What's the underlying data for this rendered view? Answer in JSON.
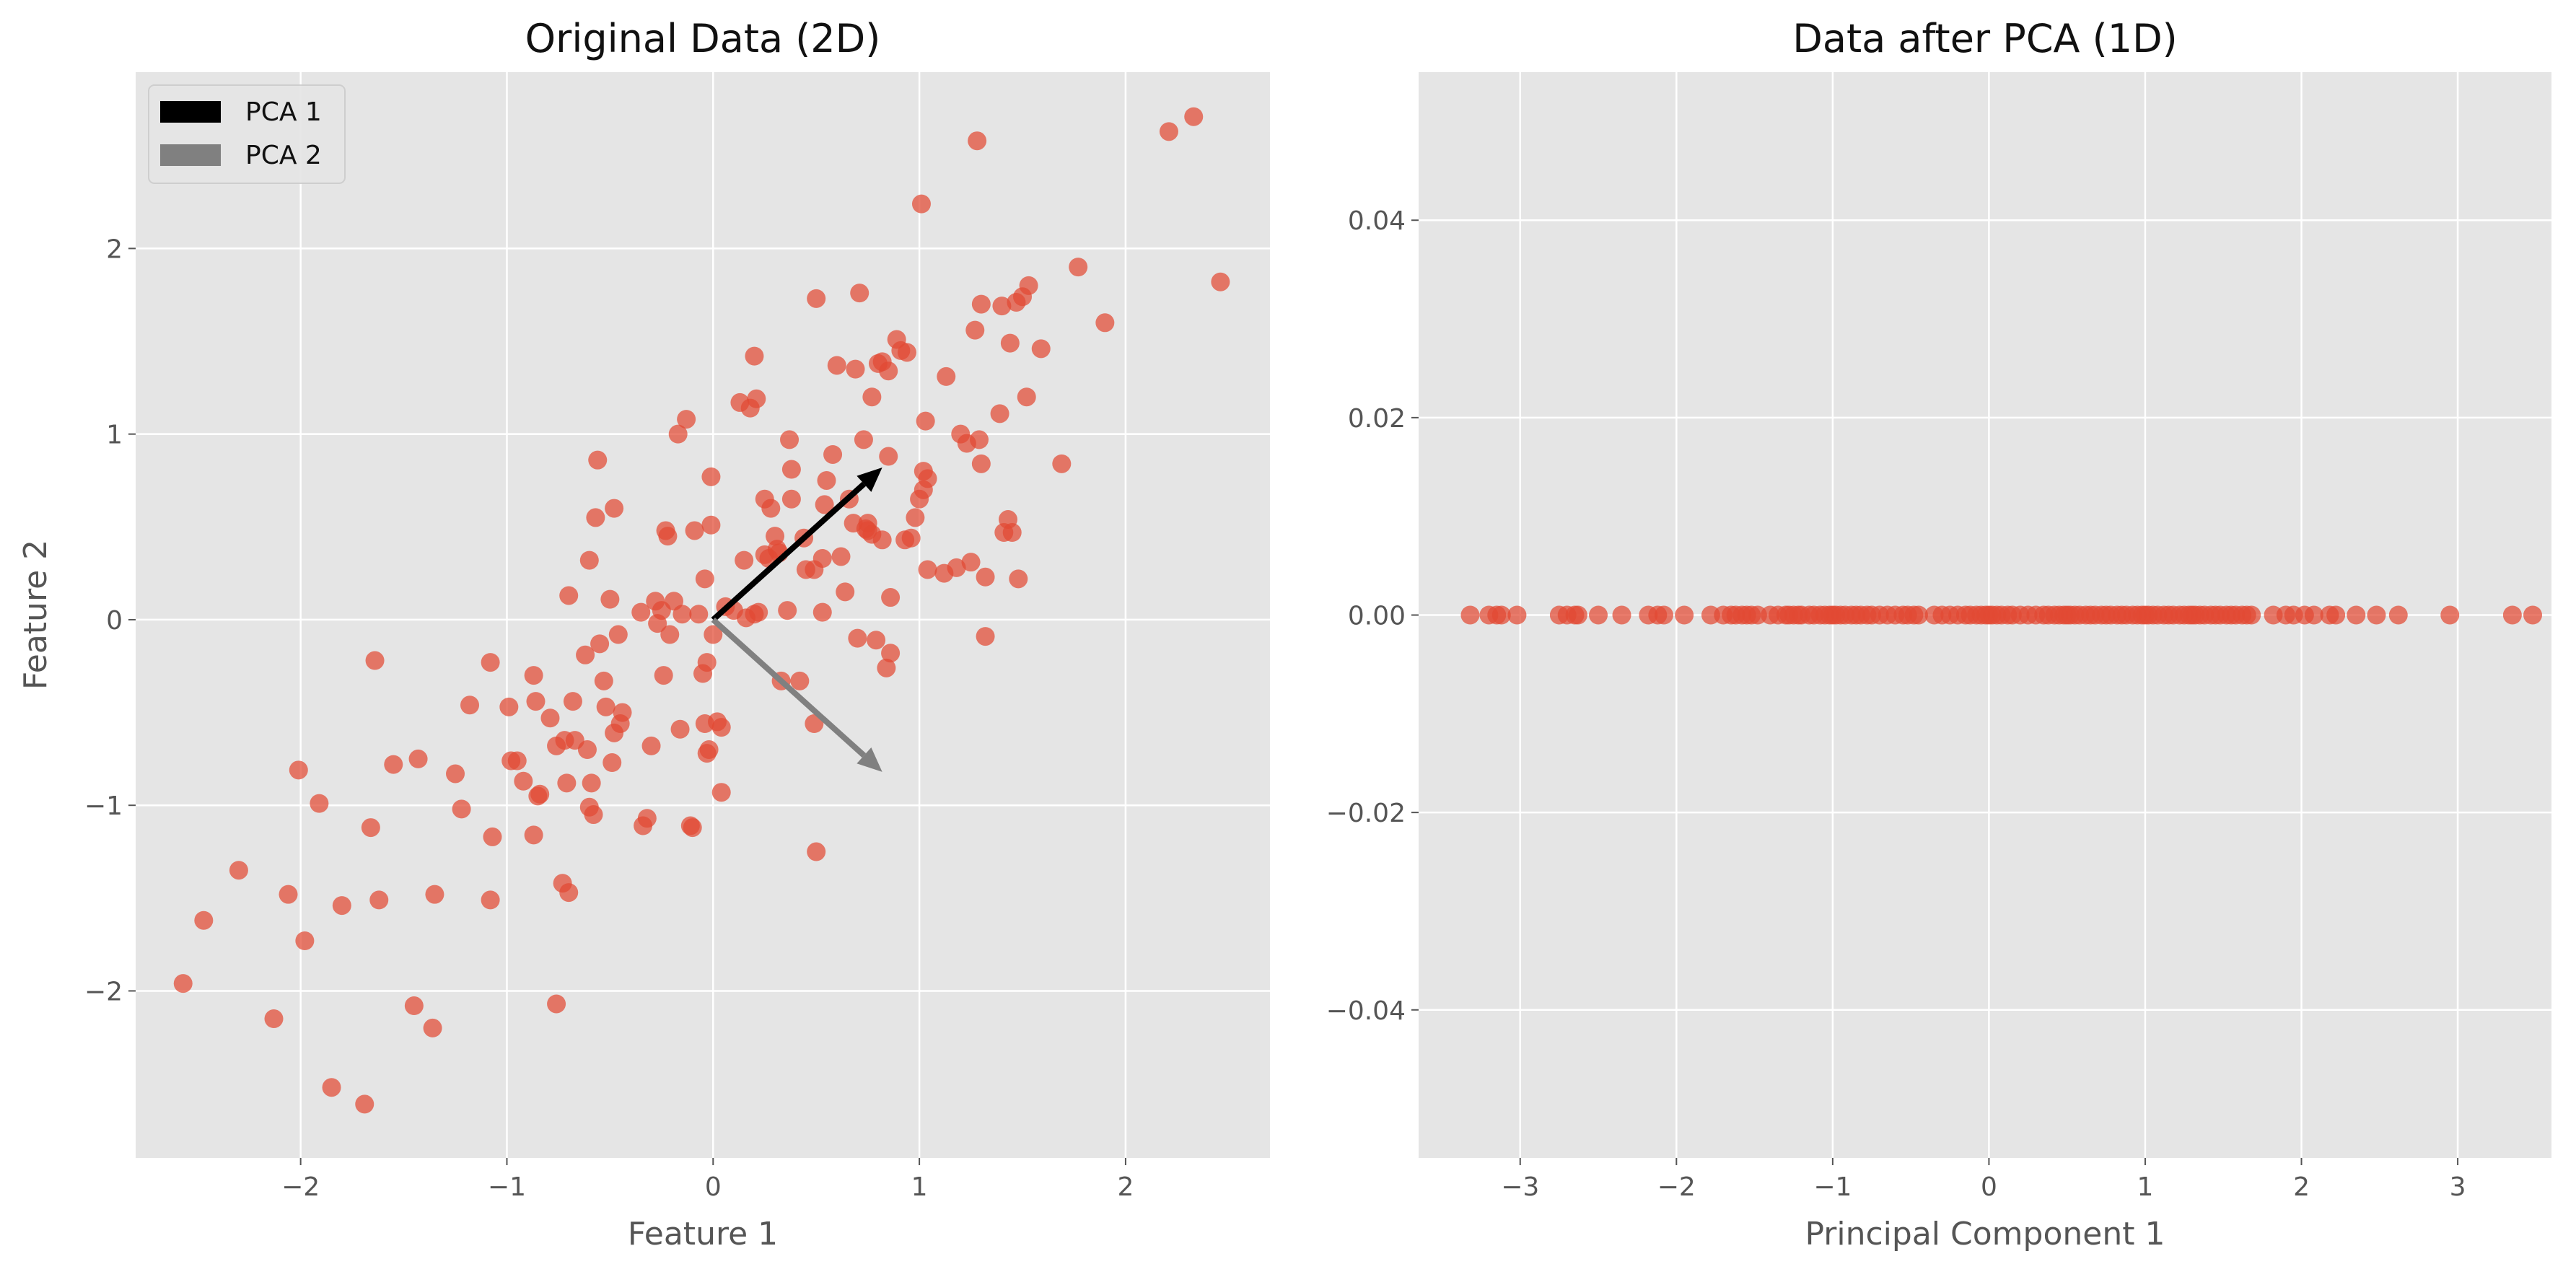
{
  "colors": {
    "figure_bg": "#ffffff",
    "axes_bg": "#e5e5e5",
    "grid": "#ffffff",
    "point": "#e24a33",
    "pca1": "#000000",
    "pca2": "#808080"
  },
  "chart_data": [
    {
      "type": "scatter",
      "title": "Original Data (2D)",
      "xlabel": "Feature 1",
      "ylabel": "Feature 2",
      "xlim": [
        -2.8,
        2.7
      ],
      "ylim": [
        -2.9,
        2.95
      ],
      "xticks": [
        -2,
        -1,
        0,
        1,
        2
      ],
      "xtick_labels": [
        "−2",
        "−1",
        "0",
        "1",
        "2"
      ],
      "yticks": [
        -2,
        -1,
        0,
        1,
        2
      ],
      "ytick_labels": [
        "−2",
        "−1",
        "0",
        "1",
        "2"
      ],
      "grid": true,
      "legend": {
        "position": "upper-left",
        "entries": [
          {
            "label": "PCA 1",
            "color": "#000000"
          },
          {
            "label": "PCA 2",
            "color": "#808080"
          }
        ]
      },
      "arrows": [
        {
          "name": "PCA 1",
          "from": [
            0,
            0
          ],
          "to": [
            0.82,
            0.82
          ],
          "color": "#000000"
        },
        {
          "name": "PCA 2",
          "from": [
            0,
            0
          ],
          "to": [
            0.82,
            -0.82
          ],
          "color": "#808080"
        }
      ],
      "points": [
        [
          -2.57,
          -1.96
        ],
        [
          -2.47,
          -1.62
        ],
        [
          -2.3,
          -1.35
        ],
        [
          -2.13,
          -2.15
        ],
        [
          -2.06,
          -1.48
        ],
        [
          -2.01,
          -0.81
        ],
        [
          -1.98,
          -1.73
        ],
        [
          -1.91,
          -0.99
        ],
        [
          -1.85,
          -2.52
        ],
        [
          -1.8,
          -1.54
        ],
        [
          -1.69,
          -2.61
        ],
        [
          -1.66,
          -1.12
        ],
        [
          -1.64,
          -0.22
        ],
        [
          -1.62,
          -1.51
        ],
        [
          -1.55,
          -0.78
        ],
        [
          -1.45,
          -2.08
        ],
        [
          -1.43,
          -0.75
        ],
        [
          -1.36,
          -2.2
        ],
        [
          -1.35,
          -1.48
        ],
        [
          -1.25,
          -0.83
        ],
        [
          -1.22,
          -1.02
        ],
        [
          -1.18,
          -0.46
        ],
        [
          -1.08,
          -0.23
        ],
        [
          -1.07,
          -1.17
        ],
        [
          -1.08,
          -1.51
        ],
        [
          -0.99,
          -0.47
        ],
        [
          -0.98,
          -0.76
        ],
        [
          -0.95,
          -0.76
        ],
        [
          -0.92,
          -0.87
        ],
        [
          -0.87,
          -0.3
        ],
        [
          -0.87,
          -1.16
        ],
        [
          -0.86,
          -0.44
        ],
        [
          -0.85,
          -0.95
        ],
        [
          -0.84,
          -0.94
        ],
        [
          -0.79,
          -0.53
        ],
        [
          -0.76,
          -2.07
        ],
        [
          -0.76,
          -0.68
        ],
        [
          -0.73,
          -1.42
        ],
        [
          -0.72,
          -0.65
        ],
        [
          -0.71,
          -0.88
        ],
        [
          -0.7,
          -1.47
        ],
        [
          -0.7,
          0.13
        ],
        [
          -0.68,
          -0.44
        ],
        [
          -0.67,
          -0.65
        ],
        [
          -0.62,
          -0.19
        ],
        [
          -0.61,
          -0.7
        ],
        [
          -0.6,
          -1.01
        ],
        [
          -0.6,
          0.32
        ],
        [
          -0.59,
          -0.88
        ],
        [
          -0.58,
          -1.05
        ],
        [
          -0.57,
          0.55
        ],
        [
          -0.56,
          0.86
        ],
        [
          -0.55,
          -0.13
        ],
        [
          -0.53,
          -0.33
        ],
        [
          -0.52,
          -0.47
        ],
        [
          -0.5,
          0.11
        ],
        [
          -0.49,
          -0.77
        ],
        [
          -0.48,
          0.6
        ],
        [
          -0.48,
          -0.61
        ],
        [
          -0.46,
          -0.08
        ],
        [
          -0.45,
          -0.56
        ],
        [
          -0.44,
          -0.5
        ],
        [
          -0.35,
          0.04
        ],
        [
          -0.34,
          -1.11
        ],
        [
          -0.32,
          -1.07
        ],
        [
          -0.3,
          -0.68
        ],
        [
          -0.28,
          0.1
        ],
        [
          -0.27,
          -0.02
        ],
        [
          -0.25,
          0.05
        ],
        [
          -0.24,
          -0.3
        ],
        [
          -0.23,
          0.48
        ],
        [
          -0.22,
          0.45
        ],
        [
          -0.21,
          -0.08
        ],
        [
          -0.19,
          0.1
        ],
        [
          -0.17,
          1.0
        ],
        [
          -0.16,
          -0.59
        ],
        [
          -0.15,
          0.03
        ],
        [
          -0.13,
          1.08
        ],
        [
          -0.11,
          -1.11
        ],
        [
          -0.1,
          -1.12
        ],
        [
          -0.09,
          0.48
        ],
        [
          -0.07,
          0.03
        ],
        [
          -0.05,
          -0.29
        ],
        [
          -0.04,
          0.22
        ],
        [
          -0.04,
          -0.56
        ],
        [
          -0.03,
          -0.23
        ],
        [
          -0.03,
          -0.72
        ],
        [
          -0.02,
          -0.7
        ],
        [
          -0.01,
          0.51
        ],
        [
          -0.01,
          0.77
        ],
        [
          0.0,
          -0.08
        ],
        [
          0.02,
          -0.55
        ],
        [
          0.04,
          -0.58
        ],
        [
          0.04,
          -0.93
        ],
        [
          0.06,
          0.07
        ],
        [
          0.1,
          0.05
        ],
        [
          0.13,
          1.17
        ],
        [
          0.15,
          0.32
        ],
        [
          0.16,
          0.01
        ],
        [
          0.18,
          1.14
        ],
        [
          0.2,
          0.03
        ],
        [
          0.2,
          1.42
        ],
        [
          0.21,
          1.19
        ],
        [
          0.22,
          0.04
        ],
        [
          0.25,
          0.65
        ],
        [
          0.25,
          0.35
        ],
        [
          0.27,
          0.33
        ],
        [
          0.28,
          0.6
        ],
        [
          0.3,
          0.45
        ],
        [
          0.31,
          0.38
        ],
        [
          0.32,
          0.36
        ],
        [
          0.33,
          -0.33
        ],
        [
          0.36,
          0.05
        ],
        [
          0.37,
          0.97
        ],
        [
          0.38,
          0.65
        ],
        [
          0.38,
          0.81
        ],
        [
          0.42,
          -0.33
        ],
        [
          0.44,
          0.44
        ],
        [
          0.45,
          0.27
        ],
        [
          0.49,
          0.27
        ],
        [
          0.49,
          -0.56
        ],
        [
          0.5,
          1.73
        ],
        [
          0.5,
          -1.25
        ],
        [
          0.53,
          0.33
        ],
        [
          0.53,
          0.04
        ],
        [
          0.54,
          0.62
        ],
        [
          0.55,
          0.75
        ],
        [
          0.58,
          0.89
        ],
        [
          0.6,
          1.37
        ],
        [
          0.62,
          0.34
        ],
        [
          0.64,
          0.15
        ],
        [
          0.66,
          0.65
        ],
        [
          0.68,
          0.52
        ],
        [
          0.69,
          1.35
        ],
        [
          0.7,
          -0.1
        ],
        [
          0.71,
          1.76
        ],
        [
          0.73,
          0.97
        ],
        [
          0.74,
          0.49
        ],
        [
          0.75,
          0.52
        ],
        [
          0.75,
          0.48
        ],
        [
          0.77,
          0.46
        ],
        [
          0.77,
          1.2
        ],
        [
          0.79,
          -0.11
        ],
        [
          0.8,
          1.38
        ],
        [
          0.82,
          0.43
        ],
        [
          0.82,
          1.39
        ],
        [
          0.84,
          -0.26
        ],
        [
          0.85,
          1.34
        ],
        [
          0.85,
          0.88
        ],
        [
          0.86,
          -0.18
        ],
        [
          0.86,
          0.12
        ],
        [
          0.89,
          1.51
        ],
        [
          0.91,
          1.45
        ],
        [
          0.93,
          0.43
        ],
        [
          0.94,
          1.44
        ],
        [
          0.96,
          0.44
        ],
        [
          0.98,
          0.55
        ],
        [
          1.0,
          0.65
        ],
        [
          1.01,
          2.24
        ],
        [
          1.02,
          0.8
        ],
        [
          1.02,
          0.7
        ],
        [
          1.03,
          1.07
        ],
        [
          1.04,
          0.76
        ],
        [
          1.04,
          0.27
        ],
        [
          1.12,
          0.25
        ],
        [
          1.13,
          1.31
        ],
        [
          1.18,
          0.28
        ],
        [
          1.2,
          1.0
        ],
        [
          1.23,
          0.95
        ],
        [
          1.25,
          0.31
        ],
        [
          1.27,
          1.56
        ],
        [
          1.28,
          2.58
        ],
        [
          1.29,
          0.97
        ],
        [
          1.3,
          1.7
        ],
        [
          1.3,
          0.84
        ],
        [
          1.32,
          0.23
        ],
        [
          1.32,
          -0.09
        ],
        [
          1.39,
          1.11
        ],
        [
          1.4,
          1.69
        ],
        [
          1.41,
          0.47
        ],
        [
          1.43,
          0.54
        ],
        [
          1.44,
          1.49
        ],
        [
          1.45,
          0.47
        ],
        [
          1.47,
          1.71
        ],
        [
          1.48,
          0.22
        ],
        [
          1.5,
          1.74
        ],
        [
          1.52,
          1.2
        ],
        [
          1.53,
          1.8
        ],
        [
          1.59,
          1.46
        ],
        [
          1.69,
          0.84
        ],
        [
          1.77,
          1.9
        ],
        [
          1.9,
          1.6
        ],
        [
          2.21,
          2.63
        ],
        [
          2.33,
          2.71
        ],
        [
          2.46,
          1.82
        ]
      ]
    },
    {
      "type": "scatter",
      "title": "Data after PCA (1D)",
      "xlabel": "Principal Component 1",
      "ylabel": "",
      "xlim": [
        -3.65,
        3.6
      ],
      "ylim": [
        -0.055,
        0.055
      ],
      "xticks": [
        -3,
        -2,
        -1,
        0,
        1,
        2,
        3
      ],
      "xtick_labels": [
        "−3",
        "−2",
        "−1",
        "0",
        "1",
        "2",
        "3"
      ],
      "yticks": [
        -0.04,
        -0.02,
        0.0,
        0.02,
        0.04
      ],
      "ytick_labels": [
        "−0.04",
        "−0.02",
        "0.00",
        "0.02",
        "0.04"
      ],
      "grid": true,
      "points_y": 0.0,
      "points_x": [
        -3.32,
        -3.2,
        -3.15,
        -3.12,
        -3.02,
        -2.75,
        -2.7,
        -2.65,
        -2.63,
        -2.5,
        -2.35,
        -2.18,
        -2.12,
        -2.08,
        -1.95,
        -1.78,
        -1.7,
        -1.65,
        -1.62,
        -1.58,
        -1.55,
        -1.52,
        -1.48,
        -1.4,
        -1.35,
        -1.3,
        -1.28,
        -1.25,
        -1.22,
        -1.2,
        -1.15,
        -1.12,
        -1.08,
        -1.05,
        -1.02,
        -1.0,
        -0.98,
        -0.95,
        -0.92,
        -0.88,
        -0.85,
        -0.82,
        -0.78,
        -0.75,
        -0.7,
        -0.65,
        -0.6,
        -0.55,
        -0.52,
        -0.48,
        -0.45,
        -0.35,
        -0.3,
        -0.25,
        -0.2,
        -0.15,
        -0.12,
        -0.08,
        -0.05,
        -0.02,
        0.0,
        0.02,
        0.05,
        0.08,
        0.12,
        0.15,
        0.2,
        0.25,
        0.3,
        0.35,
        0.38,
        0.42,
        0.45,
        0.48,
        0.5,
        0.52,
        0.55,
        0.58,
        0.62,
        0.65,
        0.68,
        0.72,
        0.75,
        0.78,
        0.82,
        0.85,
        0.88,
        0.92,
        0.95,
        0.98,
        1.0,
        1.02,
        1.05,
        1.08,
        1.12,
        1.15,
        1.18,
        1.22,
        1.25,
        1.28,
        1.3,
        1.32,
        1.35,
        1.38,
        1.42,
        1.45,
        1.48,
        1.52,
        1.55,
        1.58,
        1.62,
        1.65,
        1.68,
        1.82,
        1.9,
        1.95,
        2.02,
        2.08,
        2.18,
        2.22,
        2.35,
        2.48,
        2.62,
        2.95,
        3.35,
        3.48
      ]
    }
  ]
}
